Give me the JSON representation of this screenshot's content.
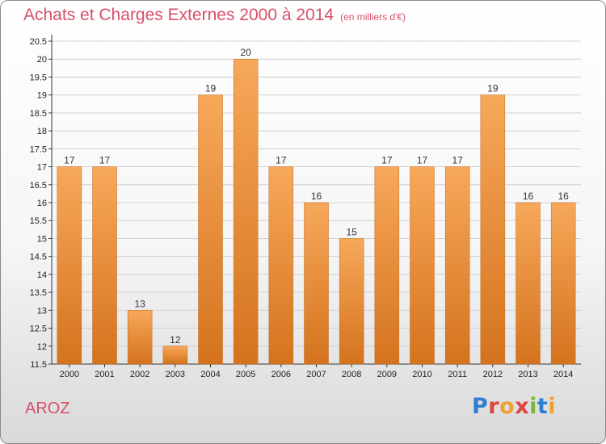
{
  "header": {
    "title": "Achats et Charges Externes 2000 à 2014",
    "subtitle": "(en milliers d'€)"
  },
  "footer": {
    "commune": "AROZ",
    "logo_text": "Proxiti"
  },
  "colors": {
    "bar_top": "#f7a85a",
    "bar_bottom": "#d4731e",
    "title": "#d8506a",
    "grid": "#d0d0d0"
  },
  "chart_data": {
    "type": "bar",
    "categories": [
      "2000",
      "2001",
      "2002",
      "2003",
      "2004",
      "2005",
      "2006",
      "2007",
      "2008",
      "2009",
      "2010",
      "2011",
      "2012",
      "2013",
      "2014"
    ],
    "values": [
      17,
      17,
      13,
      12,
      19,
      20,
      17,
      16,
      15,
      17,
      17,
      17,
      19,
      16,
      16
    ],
    "title": "Achats et Charges Externes 2000 à 2014",
    "xlabel": "",
    "ylabel": "",
    "ylim": [
      11.5,
      20.5
    ],
    "yticks": [
      "11.5",
      "12",
      "12.5",
      "13",
      "13.5",
      "14",
      "14.5",
      "15",
      "15.5",
      "16",
      "16.5",
      "17",
      "17.5",
      "18",
      "18.5",
      "19",
      "19.5",
      "20",
      "20.5"
    ],
    "grid": true
  }
}
